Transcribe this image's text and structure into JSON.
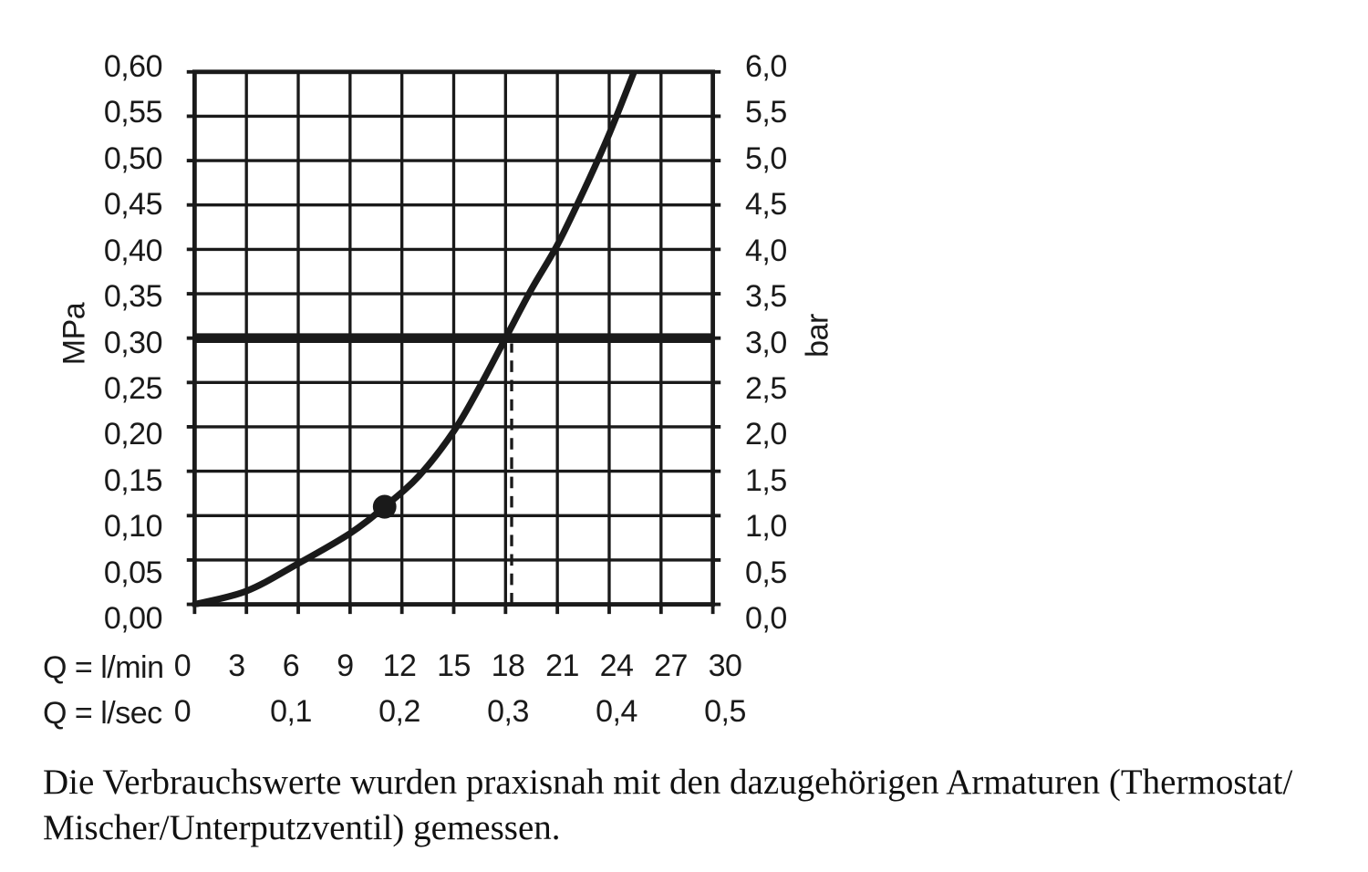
{
  "page": {
    "background": "#ffffff",
    "ink": "#1a1a1a"
  },
  "chart_data": {
    "type": "line",
    "title": "",
    "ylabel_left": "MPa",
    "ylabel_right": "bar",
    "xlabel_primary": "Q = l/min",
    "xlabel_secondary": "Q = l/sec",
    "x_range_lmin": [
      0,
      30
    ],
    "y_range_mpa": [
      0.0,
      0.6
    ],
    "y_range_bar": [
      0.0,
      6.0
    ],
    "grid": {
      "x_step_lmin": 3,
      "y_step_mpa": 0.05,
      "grid_on": true
    },
    "x_ticks_lmin": [
      "0",
      "3",
      "6",
      "9",
      "12",
      "15",
      "18",
      "21",
      "24",
      "27",
      "30"
    ],
    "x_ticks_lsec": [
      {
        "label": "0",
        "q": 0
      },
      {
        "label": "0,1",
        "q": 6
      },
      {
        "label": "0,2",
        "q": 12
      },
      {
        "label": "0,3",
        "q": 18
      },
      {
        "label": "0,4",
        "q": 24
      },
      {
        "label": "0,5",
        "q": 30
      }
    ],
    "y_ticks_left_mpa": [
      "0,60",
      "0,55",
      "0,50",
      "0,45",
      "0,40",
      "0,35",
      "0,30",
      "0,25",
      "0,20",
      "0,15",
      "0,10",
      "0,05",
      "0,00"
    ],
    "y_ticks_right_bar": [
      "6,0",
      "5,5",
      "5,0",
      "4,5",
      "4,0",
      "3,5",
      "3,0",
      "2,5",
      "2,0",
      "1,5",
      "1,0",
      "0,5",
      "0,0"
    ],
    "series": [
      {
        "name": "flow-rate-curve",
        "points_q_mpa": [
          [
            0,
            0.0
          ],
          [
            3,
            0.015
          ],
          [
            6,
            0.046
          ],
          [
            9,
            0.08
          ],
          [
            11,
            0.11
          ],
          [
            13,
            0.145
          ],
          [
            15,
            0.195
          ],
          [
            16.5,
            0.245
          ],
          [
            18,
            0.3
          ],
          [
            19.5,
            0.355
          ],
          [
            21,
            0.405
          ],
          [
            22.5,
            0.465
          ],
          [
            24,
            0.53
          ],
          [
            25.5,
            0.603
          ]
        ]
      }
    ],
    "reference_line": {
      "p_mpa": 0.3,
      "p_bar": 3.0
    },
    "dashed_guide": {
      "q_lmin": 18,
      "from_mpa": 0.0,
      "to_mpa": 0.3
    },
    "marker_point": {
      "q_lmin": 11,
      "p_mpa": 0.11
    }
  },
  "caption": {
    "line1": "Die Verbrauchswerte wurden praxisnah mit den dazugehörigen Armaturen (Thermostat/",
    "line2": "Mischer/Unterputzventil) gemessen."
  }
}
